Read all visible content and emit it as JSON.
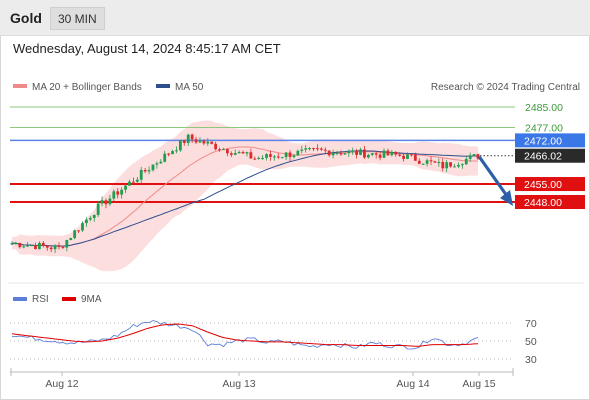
{
  "header": {
    "title": "Gold",
    "timeframe": "30 MIN"
  },
  "date_line": "Wednesday, August 14, 2024 8:45:17 AM CET",
  "legend": {
    "ma20": {
      "label": "MA 20 + Bollinger Bands",
      "color": "#f08a8a"
    },
    "ma50": {
      "label": "MA 50",
      "color": "#2d4f8e"
    }
  },
  "credit": "Research © 2024 Trading Central",
  "rsi_legend": {
    "rsi": {
      "label": "RSI",
      "color": "#5b7fd6"
    },
    "ma9": {
      "label": "9MA",
      "color": "#e00000"
    }
  },
  "colors": {
    "bull": "#1e9e4e",
    "bear": "#e02a2a",
    "resistance": "#e01010",
    "current": "#5b84e6",
    "green_line": "#8cc87a",
    "arrow": "#2d5ea8",
    "band": "#fbd3d3"
  },
  "chart_data": [
    {
      "type": "candlestick",
      "title": "Gold",
      "timeframe": "30 MIN",
      "ylim": [
        2425,
        2489
      ],
      "x_labels": [
        "Aug 12",
        "Aug 13",
        "Aug 14",
        "Aug 15"
      ],
      "last_price": "2466.02",
      "levels": [
        {
          "value": 2485.0,
          "label": "2485.00",
          "style": "green"
        },
        {
          "value": 2477.0,
          "label": "2477.00",
          "style": "green"
        },
        {
          "value": 2472.0,
          "label": "2472.00",
          "style": "current"
        },
        {
          "value": 2455.0,
          "label": "2455.00",
          "style": "red"
        },
        {
          "value": 2448.0,
          "label": "2448.00",
          "style": "red"
        }
      ],
      "path_key_points": [
        {
          "time": "Aug 12",
          "price": 2432
        },
        {
          "time": "Aug 12 late",
          "price": 2430
        },
        {
          "time": "Aug 13 early",
          "price": 2446
        },
        {
          "time": "Aug 13",
          "price": 2473
        },
        {
          "time": "Aug 13 mid",
          "price": 2465
        },
        {
          "time": "Aug 13 late",
          "price": 2468
        },
        {
          "time": "Aug 14",
          "price": 2466
        },
        {
          "time": "Aug 14 late",
          "price": 2462
        },
        {
          "time": "Aug 15",
          "price": 2466
        }
      ],
      "forecast_arrow": {
        "from": 2466,
        "to": 2448
      }
    },
    {
      "type": "line",
      "title": "RSI",
      "ylim": [
        25,
        80
      ],
      "y_ticks": [
        70,
        50,
        30
      ],
      "series": [
        {
          "name": "RSI",
          "values": [
            57,
            54,
            52,
            50,
            48,
            49,
            51,
            56,
            66,
            72,
            70,
            67,
            64,
            47,
            46,
            50,
            52,
            48,
            50,
            46,
            44,
            47,
            45,
            43,
            48,
            45,
            44,
            43,
            55,
            46,
            47,
            53
          ]
        },
        {
          "name": "9MA",
          "values": [
            58,
            56,
            54,
            52,
            50,
            49,
            50,
            53,
            58,
            64,
            68,
            69,
            67,
            60,
            54,
            51,
            50,
            49,
            49,
            48,
            47,
            46,
            46,
            45,
            45,
            45,
            45,
            44,
            46,
            46,
            46,
            47
          ]
        }
      ]
    }
  ]
}
